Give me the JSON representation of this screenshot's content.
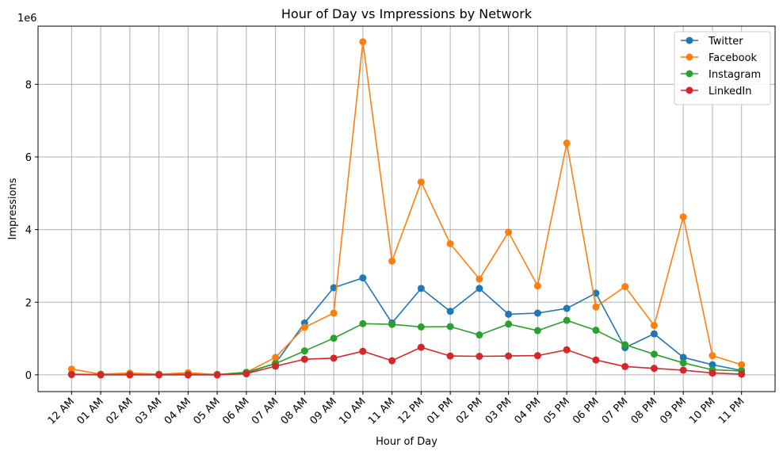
{
  "chart_data": {
    "type": "line",
    "title": "Hour of Day vs Impressions by Network",
    "xlabel": "Hour of Day",
    "ylabel": "Impressions",
    "y_scale_label": "1e6",
    "categories": [
      "12 AM",
      "01 AM",
      "02 AM",
      "03 AM",
      "04 AM",
      "05 AM",
      "06 AM",
      "07 AM",
      "08 AM",
      "09 AM",
      "10 AM",
      "11 AM",
      "12 PM",
      "01 PM",
      "02 PM",
      "03 PM",
      "04 PM",
      "05 PM",
      "06 PM",
      "07 PM",
      "08 PM",
      "09 PM",
      "10 PM",
      "11 PM"
    ],
    "y_ticks": [
      0,
      2,
      4,
      6,
      8
    ],
    "ylim": [
      -0.46,
      9.6
    ],
    "grid": true,
    "legend_position": "top-right",
    "series": [
      {
        "name": "Twitter",
        "color": "#1f77b4",
        "values": [
          0.02,
          0.01,
          0.01,
          0.01,
          0.02,
          0.01,
          0.05,
          0.32,
          1.43,
          2.4,
          2.67,
          1.43,
          2.38,
          1.75,
          2.38,
          1.67,
          1.7,
          1.83,
          2.25,
          0.75,
          1.13,
          0.48,
          0.28,
          0.12
        ]
      },
      {
        "name": "Facebook",
        "color": "#ff7f0e",
        "values": [
          0.16,
          0.02,
          0.05,
          0.02,
          0.06,
          0.01,
          0.07,
          0.48,
          1.31,
          1.7,
          9.17,
          3.13,
          5.31,
          3.61,
          2.64,
          3.93,
          2.45,
          6.38,
          1.87,
          2.43,
          1.36,
          4.35,
          0.53,
          0.28
        ]
      },
      {
        "name": "Instagram",
        "color": "#2ca02c",
        "values": [
          0.01,
          0.01,
          0.01,
          0.01,
          0.01,
          0.01,
          0.07,
          0.31,
          0.66,
          1.01,
          1.41,
          1.39,
          1.32,
          1.33,
          1.1,
          1.4,
          1.22,
          1.5,
          1.23,
          0.83,
          0.57,
          0.33,
          0.14,
          0.11
        ]
      },
      {
        "name": "LinkedIn",
        "color": "#d62728",
        "values": [
          0.01,
          0.0,
          0.0,
          0.0,
          0.0,
          0.0,
          0.03,
          0.24,
          0.43,
          0.46,
          0.65,
          0.39,
          0.76,
          0.52,
          0.51,
          0.52,
          0.53,
          0.69,
          0.41,
          0.23,
          0.18,
          0.13,
          0.05,
          0.02
        ]
      }
    ]
  }
}
